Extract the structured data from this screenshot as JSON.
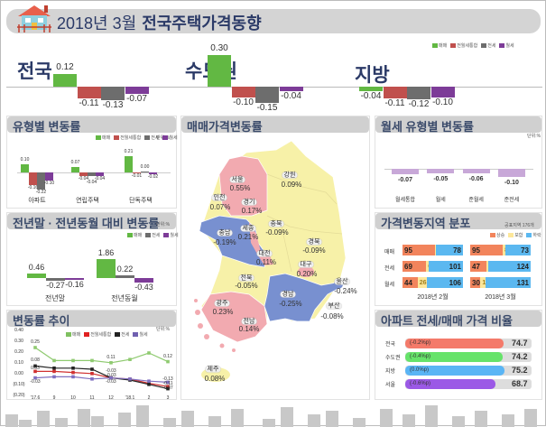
{
  "header": {
    "title_prefix": "2018년 3월",
    "title_main": "전국주택가격동향"
  },
  "colors": {
    "sale": "#62b843",
    "combined": "#c0504d",
    "jeonse": "#6d6d6d",
    "monthly": "#7d3c98",
    "rent_type": "#c8a8d8",
    "up": "#f2845c",
    "flat": "#fde79a",
    "down": "#5bb8f0",
    "pink": "#f2aab0",
    "yellow": "#f7f1a8",
    "blue": "#7890d0"
  },
  "legend4": [
    "매매",
    "전월세통합",
    "전세",
    "월세"
  ],
  "summary": {
    "groups": [
      {
        "name": "전국",
        "values": [
          0.12,
          -0.11,
          -0.13,
          -0.07
        ],
        "labels": [
          "0.12",
          "-0.11",
          "-0.13",
          "-0.07"
        ]
      },
      {
        "name": "수도권",
        "values": [
          0.3,
          -0.1,
          -0.15,
          -0.04
        ],
        "labels": [
          "0.30",
          "-0.10",
          "-0.15",
          "-0.04"
        ]
      },
      {
        "name": "지방",
        "values": [
          -0.04,
          -0.11,
          -0.12,
          -0.1
        ],
        "labels": [
          "-0.04",
          "-0.11",
          "-0.12",
          "-0.10"
        ]
      }
    ]
  },
  "by_type": {
    "title": "유형별 변동률",
    "unit": "단위:%",
    "categories": [
      "아파트",
      "연립주택",
      "단독주택"
    ],
    "values": [
      [
        0.1,
        -0.16,
        -0.22,
        -0.1
      ],
      [
        0.07,
        -0.04,
        -0.04,
        -0.04
      ],
      [
        0.21,
        -0.01,
        0.0,
        -0.02
      ]
    ],
    "labels": [
      [
        "0.10",
        "-0.16",
        "-0.22",
        "-0.10"
      ],
      [
        "0.07",
        "-0.04",
        "-0.04",
        "-0.04"
      ],
      [
        "0.21",
        "-0.01",
        "0.00",
        "-0.02"
      ]
    ]
  },
  "yoy": {
    "title": "전년말 · 전년동월 대비 변동률",
    "unit": "단위:%",
    "legend": [
      "매매",
      "전세",
      "월세"
    ],
    "categories": [
      "전년말",
      "전년동월"
    ],
    "values": [
      [
        0.46,
        -0.27,
        -0.16
      ],
      [
        1.86,
        0.22,
        -0.43
      ]
    ],
    "labels": [
      [
        "0.46",
        "-0.27",
        "-0.16"
      ],
      [
        "1.86",
        "0.22",
        "-0.43"
      ]
    ]
  },
  "trend": {
    "title": "변동률 추이",
    "unit": "단위:%",
    "yticks": [
      "0.40",
      "0.30",
      "0.20",
      "0.10",
      "0.00",
      "(0.10)",
      "(0.20)"
    ],
    "x": [
      "'17.6",
      "9",
      "10",
      "11",
      "12",
      "'18.1",
      "2",
      "3"
    ],
    "series": [
      {
        "name": "매매",
        "values": [
          0.25,
          0.13,
          0.13,
          0.13,
          0.11,
          0.14,
          0.2,
          0.12
        ],
        "labels": [
          "0.25",
          null,
          null,
          null,
          "0.11",
          null,
          null,
          "0.12"
        ]
      },
      {
        "name": "전월세통합",
        "values": [
          0.03,
          0.03,
          0.02,
          0.01,
          -0.03,
          -0.04,
          -0.08,
          -0.11
        ],
        "labels": [
          "0.03",
          null,
          null,
          null,
          "-0.03",
          null,
          null,
          "-0.11"
        ]
      },
      {
        "name": "전세",
        "values": [
          0.08,
          0.06,
          0.06,
          0.05,
          -0.03,
          -0.05,
          -0.09,
          -0.13
        ],
        "labels": [
          "0.08",
          null,
          null,
          null,
          "-0.03",
          null,
          null,
          "-0.13"
        ]
      },
      {
        "name": "월세",
        "values": [
          -0.03,
          -0.02,
          -0.02,
          -0.04,
          -0.03,
          -0.04,
          -0.06,
          -0.07
        ],
        "labels": [
          "-0.03",
          null,
          null,
          null,
          "-0.03",
          null,
          null,
          "-0.07"
        ]
      }
    ]
  },
  "map": {
    "title": "매매가격변동률",
    "regions": [
      {
        "name": "서울",
        "value": "0.55%"
      },
      {
        "name": "인천",
        "value": "0.07%"
      },
      {
        "name": "경기",
        "value": "0.17%"
      },
      {
        "name": "강원",
        "value": "0.09%"
      },
      {
        "name": "충북",
        "value": "-0.09%"
      },
      {
        "name": "세종",
        "value": "0.21%"
      },
      {
        "name": "충남",
        "value": "-0.19%"
      },
      {
        "name": "대전",
        "value": "0.11%"
      },
      {
        "name": "경북",
        "value": "-0.09%"
      },
      {
        "name": "대구",
        "value": "0.20%"
      },
      {
        "name": "전북",
        "value": "-0.05%"
      },
      {
        "name": "울산",
        "value": "-0.24%"
      },
      {
        "name": "경남",
        "value": "-0.25%"
      },
      {
        "name": "부산",
        "value": "-0.08%"
      },
      {
        "name": "광주",
        "value": "0.23%"
      },
      {
        "name": "전남",
        "value": "0.14%"
      },
      {
        "name": "제주",
        "value": "0.08%"
      }
    ]
  },
  "rent_type": {
    "title": "월세 유형별 변동률",
    "unit": "단위:%",
    "categories": [
      "월세통합",
      "월세",
      "준월세",
      "준전세"
    ],
    "values": [
      -0.07,
      -0.05,
      -0.06,
      -0.1
    ],
    "labels": [
      "-0.07",
      "-0.05",
      "-0.06",
      "-0.10"
    ]
  },
  "dist": {
    "title": "가격변동지역 분포",
    "note": "공표지역 176개",
    "legend": [
      "상승",
      "보합",
      "하락"
    ],
    "rows": [
      "매매",
      "전세",
      "월세"
    ],
    "periods": [
      {
        "label": "2018년 2월",
        "data": [
          [
            95,
            3,
            78
          ],
          [
            69,
            6,
            101
          ],
          [
            44,
            26,
            106
          ]
        ]
      },
      {
        "label": "2018년 3월",
        "data": [
          [
            95,
            8,
            73
          ],
          [
            47,
            5,
            124
          ],
          [
            30,
            15,
            131
          ]
        ]
      }
    ]
  },
  "ratio": {
    "title": "아파트 전세/매매 가격 비율",
    "rows": [
      {
        "name": "전국",
        "change": "(-0.2%p)",
        "value": 74.7,
        "value_text": "74.7",
        "color": "#f47a6a"
      },
      {
        "name": "수도권",
        "change": "(-0.4%p)",
        "value": 74.2,
        "value_text": "74.2",
        "color": "#66e36a"
      },
      {
        "name": "지방",
        "change": "(0.0%p)",
        "value": 75.2,
        "value_text": "75.2",
        "color": "#5ab5f5"
      },
      {
        "name": "서울",
        "change": "(-0.6%p)",
        "value": 68.7,
        "value_text": "68.7",
        "color": "#9b59e6"
      }
    ]
  }
}
